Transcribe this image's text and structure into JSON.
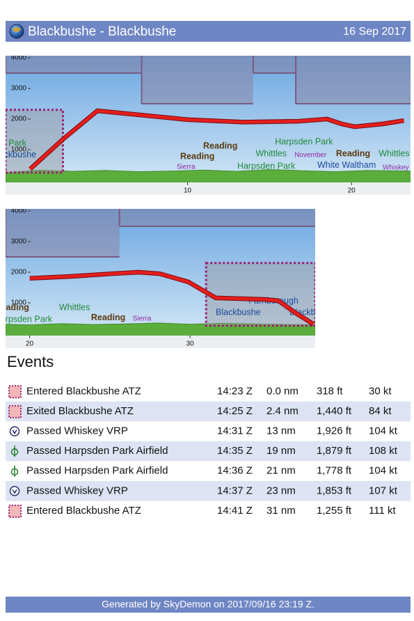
{
  "header": {
    "title": "Blackbushe - Blackbushe",
    "date": "16 Sep 2017"
  },
  "chart_data": [
    {
      "type": "profile",
      "xlim": [
        -1.1,
        23.6
      ],
      "ylim": [
        -480,
        4070
      ],
      "xticks": [
        10,
        20
      ],
      "yticks": [
        1000,
        2000,
        3000,
        4000
      ],
      "altitude": {
        "color": "#e41e1e",
        "x": [
          0.4,
          2.4,
          4.5,
          7.0,
          10,
          13.4,
          16.8,
          18.5,
          19.4,
          20.2,
          21.9,
          23.2
        ],
        "values": [
          364,
          1340,
          2270,
          2140,
          1980,
          1900,
          1930,
          2000,
          1840,
          1750,
          1840,
          1950
        ]
      },
      "terrain": {
        "color": "#5cae3c",
        "x": [
          -1.1,
          1,
          3,
          5,
          7,
          9,
          11,
          13,
          15,
          17,
          19,
          21,
          23.6
        ],
        "values": [
          250,
          330,
          290,
          320,
          280,
          300,
          330,
          290,
          350,
          310,
          280,
          320,
          300
        ]
      },
      "airspace": {
        "color": "#8c7a96",
        "edges": [
          -1.1,
          7.2,
          14,
          16.6,
          23.6
        ],
        "values": [
          3500,
          2500,
          3500,
          2500
        ]
      },
      "zones": [
        {
          "color": "#9a1e6e",
          "edges": [
            -1.1,
            2.4
          ],
          "top": 2300
        }
      ],
      "annotations": [
        {
          "text": "Sierra",
          "x": 9.9,
          "y": 430,
          "color": "#8a2aa0"
        },
        {
          "text": "Reading",
          "x": 10.6,
          "y": 770,
          "color": "#5a3a10"
        },
        {
          "text": "Reading",
          "x": 12.0,
          "y": 1110,
          "color": "#5a3a10"
        },
        {
          "text": "Harpsden Park",
          "x": 17.1,
          "y": 1250,
          "color": "#1f8a3a"
        },
        {
          "text": "Whittles",
          "x": 15.1,
          "y": 860,
          "color": "#1f8a3a"
        },
        {
          "text": "November",
          "x": 17.5,
          "y": 820,
          "color": "#8a2aa0"
        },
        {
          "text": "Reading",
          "x": 20.1,
          "y": 860,
          "color": "#5a3a10"
        },
        {
          "text": "Whittles",
          "x": 22.6,
          "y": 860,
          "color": "#1f8a3a"
        },
        {
          "text": "Harpsden Park",
          "x": 14.8,
          "y": 450,
          "color": "#1f8a3a"
        },
        {
          "text": "White Waltham",
          "x": 19.7,
          "y": 480,
          "color": "#1a4a9a"
        },
        {
          "text": "Whiskey",
          "x": 22.7,
          "y": 410,
          "color": "#8a2aa0"
        },
        {
          "text": "Harpsden Park",
          "x": -1.6,
          "y": 1200,
          "color": "#1f8a3a"
        },
        {
          "text": "Blackbushe",
          "x": -0.6,
          "y": 820,
          "color": "#1a4a9a"
        }
      ]
    },
    {
      "type": "profile",
      "xlim": [
        18.5,
        37.8
      ],
      "ylim": [
        -480,
        4070
      ],
      "xticks": [
        20,
        30
      ],
      "yticks": [
        1000,
        2000,
        3000,
        4000
      ],
      "altitude": {
        "color": "#e41e1e",
        "x": [
          20,
          22.5,
          25.1,
          26.8,
          28.1,
          29.9,
          31.6,
          34.7,
          35.5,
          36.6,
          37.7
        ],
        "values": [
          1800,
          1860,
          1950,
          2000,
          1950,
          1680,
          1160,
          1110,
          1070,
          660,
          300
        ]
      },
      "terrain": {
        "color": "#5cae3c",
        "x": [
          18.5,
          20,
          22,
          24,
          26,
          28,
          30,
          32,
          34,
          36,
          37.8
        ],
        "values": [
          300,
          280,
          320,
          290,
          310,
          340,
          300,
          330,
          310,
          290,
          280
        ]
      },
      "airspace": {
        "color": "#8c7a96",
        "edges": [
          18.5,
          25.6,
          37.8
        ],
        "values": [
          2500,
          3500
        ]
      },
      "zones": [
        {
          "color": "#9a1e6e",
          "edges": [
            31.0,
            37.8
          ],
          "top": 2300
        }
      ],
      "annotations": [
        {
          "text": "Whittles",
          "x": 22.8,
          "y": 840,
          "color": "#1f8a3a"
        },
        {
          "text": "Reading",
          "x": 18.9,
          "y": 840,
          "color": "#5a3a10"
        },
        {
          "text": "Harpsden Park",
          "x": 19.6,
          "y": 450,
          "color": "#1f8a3a"
        },
        {
          "text": "Reading",
          "x": 24.9,
          "y": 500,
          "color": "#5a3a10"
        },
        {
          "text": "Sierra",
          "x": 27.0,
          "y": 480,
          "color": "#8a2aa0"
        },
        {
          "text": "Farnborough",
          "x": 35.2,
          "y": 1050,
          "color": "#1a4a9a"
        },
        {
          "text": "Blackbushe",
          "x": 33.0,
          "y": 680,
          "color": "#1a4a9a"
        },
        {
          "text": "Blackbushe",
          "x": 37.6,
          "y": 680,
          "color": "#1a4a9a"
        }
      ]
    }
  ],
  "events": {
    "title": "Events",
    "rows": [
      {
        "icon": "atz",
        "cells": [
          "Entered Blackbushe ATZ",
          "14:23 Z",
          "0.0 nm",
          "318 ft",
          "30 kt"
        ]
      },
      {
        "icon": "atz",
        "cells": [
          "Exited Blackbushe ATZ",
          "14:25 Z",
          "2.4 nm",
          "1,440 ft",
          "84 kt"
        ]
      },
      {
        "icon": "vrp",
        "cells": [
          "Passed Whiskey VRP",
          "14:31 Z",
          "13 nm",
          "1,926 ft",
          "104 kt"
        ]
      },
      {
        "icon": "airfield",
        "cells": [
          "Passed Harpsden Park Airfield",
          "14:35 Z",
          "19 nm",
          "1,879 ft",
          "108 kt"
        ]
      },
      {
        "icon": "airfield",
        "cells": [
          "Passed Harpsden Park Airfield",
          "14:36 Z",
          "21 nm",
          "1,778 ft",
          "104 kt"
        ]
      },
      {
        "icon": "vrp",
        "cells": [
          "Passed Whiskey VRP",
          "14:37 Z",
          "23 nm",
          "1,853 ft",
          "107 kt"
        ]
      },
      {
        "icon": "atz",
        "cells": [
          "Entered Blackbushe ATZ",
          "14:41 Z",
          "31 nm",
          "1,255 ft",
          "111 kt"
        ]
      }
    ]
  },
  "footer": {
    "text": "Generated by SkyDemon on 2017/09/16 23:19 Z."
  }
}
